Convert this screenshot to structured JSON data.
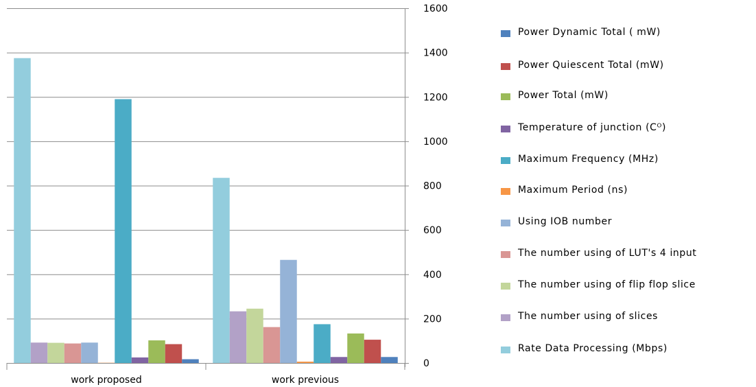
{
  "chart_data": {
    "type": "bar",
    "categories": [
      "work proposed",
      "work previous"
    ],
    "ylim": [
      0,
      1600
    ],
    "yticks": [
      0,
      200,
      400,
      600,
      800,
      1000,
      1200,
      1400,
      1600
    ],
    "y_axis_side": "right",
    "grid": "horizontal",
    "legend_position": "right",
    "bar_order_within_group": [
      10,
      9,
      8,
      7,
      6,
      5,
      4,
      3,
      2,
      1,
      0
    ],
    "series": [
      {
        "name": "Power Dynamic Total ( mW)",
        "color": "#4f81bd",
        "values": [
          17,
          27
        ]
      },
      {
        "name": "Power Quiescent Total (mW)",
        "color": "#c0504d",
        "values": [
          85,
          105
        ]
      },
      {
        "name": "Power Total (mW)",
        "color": "#9bbb59",
        "values": [
          102,
          133
        ]
      },
      {
        "name": "Temperature of junction (Cᴼ)",
        "color": "#8064a2",
        "values": [
          25,
          27
        ]
      },
      {
        "name": "Maximum Frequency (MHz)",
        "color": "#4bacc6",
        "values": [
          1190,
          175
        ]
      },
      {
        "name": "Maximum Period (ns)",
        "color": "#f79646",
        "values": [
          1,
          6
        ]
      },
      {
        "name": "Using IOB number",
        "color": "#95b3d7",
        "values": [
          92,
          465
        ]
      },
      {
        "name": "The number using of LUT's 4 input",
        "color": "#d99694",
        "values": [
          88,
          162
        ]
      },
      {
        "name": "The number using of flip flop slice",
        "color": "#c3d69b",
        "values": [
          91,
          245
        ]
      },
      {
        "name": "The number using of slices",
        "color": "#b2a1c7",
        "values": [
          92,
          233
        ]
      },
      {
        "name": "Rate Data Processing (Mbps)",
        "color": "#93cddd",
        "values": [
          1375,
          835
        ]
      }
    ]
  }
}
